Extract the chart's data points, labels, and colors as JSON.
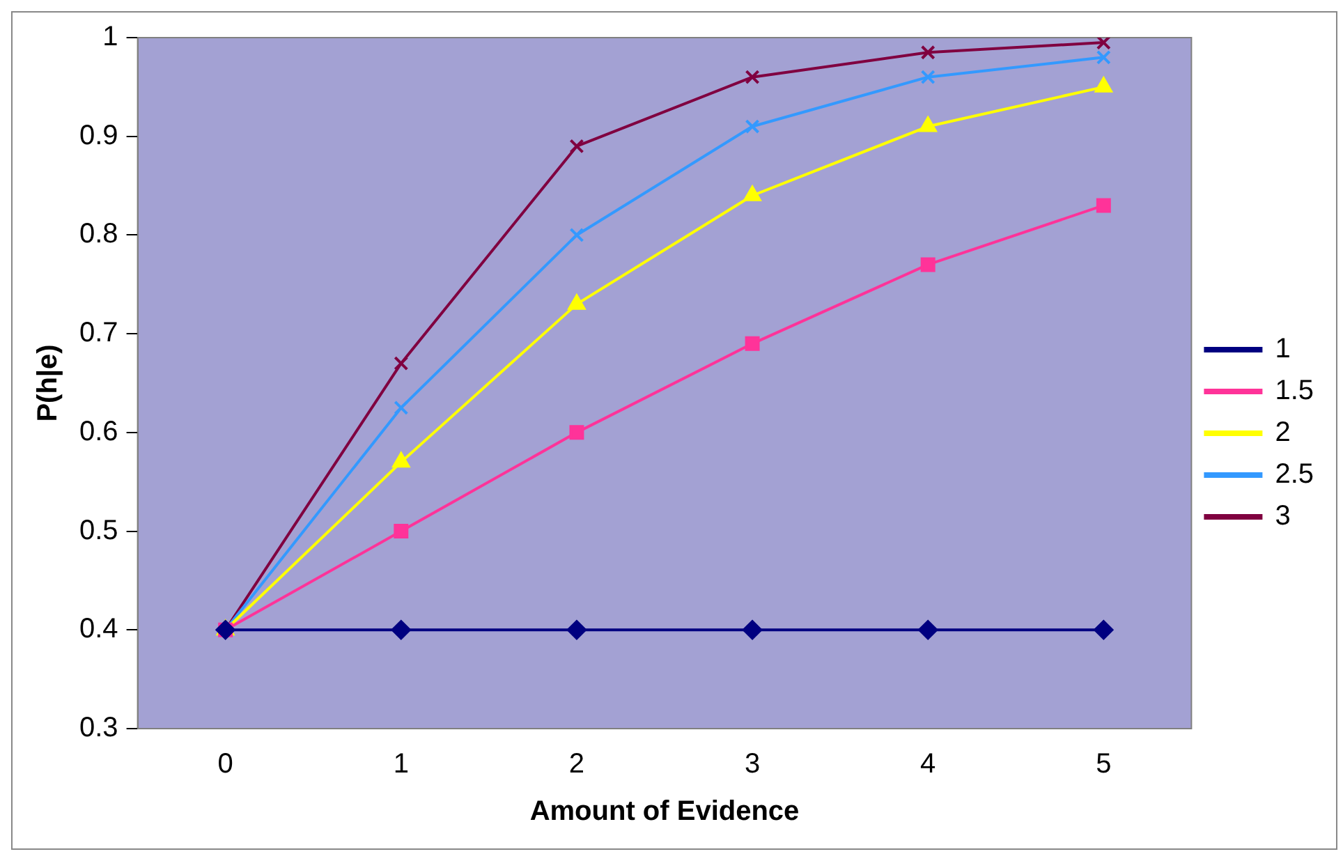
{
  "chart_data": {
    "type": "line",
    "xlabel": "Amount of Evidence",
    "ylabel": "P(h|e)",
    "categories": [
      "0",
      "1",
      "2",
      "3",
      "4",
      "5"
    ],
    "series": [
      {
        "name": "1",
        "color": "#000080",
        "marker": "diamond",
        "values": [
          0.4,
          0.4,
          0.4,
          0.4,
          0.4,
          0.4
        ]
      },
      {
        "name": "1.5",
        "color": "#ff3399",
        "marker": "square",
        "values": [
          0.4,
          0.5,
          0.6,
          0.69,
          0.77,
          0.83
        ]
      },
      {
        "name": "2",
        "color": "#ffff00",
        "marker": "triangle",
        "values": [
          0.4,
          0.57,
          0.73,
          0.84,
          0.91,
          0.95
        ]
      },
      {
        "name": "2.5",
        "color": "#3399ff",
        "marker": "cross",
        "values": [
          0.4,
          0.625,
          0.8,
          0.91,
          0.96,
          0.98
        ]
      },
      {
        "name": "3",
        "color": "#800040",
        "marker": "cross",
        "values": [
          0.4,
          0.67,
          0.89,
          0.96,
          0.985,
          0.995
        ]
      }
    ],
    "ylim": [
      0.3,
      1
    ],
    "yticks": [
      0.3,
      0.4,
      0.5,
      0.6,
      0.7,
      0.8,
      0.9,
      1
    ],
    "grid": false,
    "legend": "right"
  }
}
